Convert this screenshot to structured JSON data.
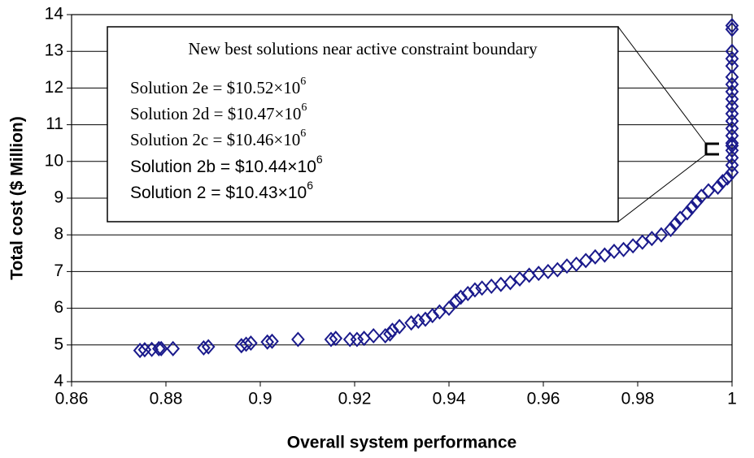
{
  "chart_data": {
    "type": "scatter",
    "xlabel": "Overall system performance",
    "ylabel": "Total cost ($ Million)",
    "xlim": [
      0.86,
      1
    ],
    "xticks": [
      0.86,
      0.88,
      0.9,
      0.92,
      0.94,
      0.96,
      0.98,
      1
    ],
    "ylim": [
      4,
      14
    ],
    "yticks": [
      4,
      5,
      6,
      7,
      8,
      9,
      10,
      11,
      12,
      13,
      14
    ],
    "grid": true,
    "series": [
      {
        "color": "#1a1a8c",
        "x": [
          0.8745,
          0.8755,
          0.877,
          0.8785,
          0.879,
          0.8815,
          0.888,
          0.889,
          0.896,
          0.897,
          0.898,
          0.9015,
          0.9025,
          0.908,
          0.915,
          0.916,
          0.919,
          0.9205,
          0.922,
          0.924,
          0.9265,
          0.9275,
          0.928,
          0.9295,
          0.932,
          0.9335,
          0.935,
          0.9365,
          0.938,
          0.94,
          0.9415,
          0.9425,
          0.944,
          0.9455,
          0.947,
          0.949,
          0.951,
          0.953,
          0.955,
          0.957,
          0.959,
          0.961,
          0.963,
          0.965,
          0.967,
          0.969,
          0.971,
          0.973,
          0.975,
          0.977,
          0.979,
          0.981,
          0.983,
          0.985,
          0.987,
          0.988,
          0.989,
          0.9905,
          0.9915,
          0.9925,
          0.9935,
          0.995,
          0.997,
          0.998,
          0.999,
          1,
          1,
          1,
          1,
          1,
          1,
          1,
          1,
          1,
          1,
          1,
          1,
          1,
          1,
          1,
          1,
          1,
          1,
          1,
          1
        ],
        "y": [
          4.85,
          4.87,
          4.88,
          4.9,
          4.9,
          4.9,
          4.92,
          4.95,
          4.98,
          5.02,
          5.05,
          5.08,
          5.1,
          5.15,
          5.15,
          5.18,
          5.15,
          5.15,
          5.18,
          5.25,
          5.25,
          5.3,
          5.4,
          5.5,
          5.6,
          5.65,
          5.7,
          5.8,
          5.9,
          6.0,
          6.2,
          6.3,
          6.4,
          6.5,
          6.55,
          6.6,
          6.65,
          6.7,
          6.8,
          6.9,
          6.95,
          7.0,
          7.05,
          7.15,
          7.2,
          7.3,
          7.4,
          7.45,
          7.55,
          7.6,
          7.7,
          7.8,
          7.9,
          8.0,
          8.15,
          8.3,
          8.45,
          8.6,
          8.75,
          8.9,
          9.05,
          9.2,
          9.3,
          9.45,
          9.55,
          9.7,
          9.9,
          10.1,
          10.3,
          10.43,
          10.5,
          10.7,
          10.9,
          11.1,
          11.3,
          11.5,
          11.7,
          11.9,
          12.1,
          12.3,
          12.6,
          12.8,
          13.0,
          13.6,
          13.7
        ]
      }
    ],
    "annotation": {
      "title": "New best solutions near active constraint boundary",
      "lines": [
        {
          "text": "Solution 2e = $10.52×10",
          "sup": "6"
        },
        {
          "text": "Solution 2d = $10.47×10",
          "sup": "6"
        },
        {
          "text": "Solution 2c = $10.46×10",
          "sup": "6"
        },
        {
          "text": "Solution 2b = $10.44×10",
          "sup": "6"
        },
        {
          "text": "Solution 2 = $10.43×10",
          "sup": "6"
        }
      ]
    }
  }
}
